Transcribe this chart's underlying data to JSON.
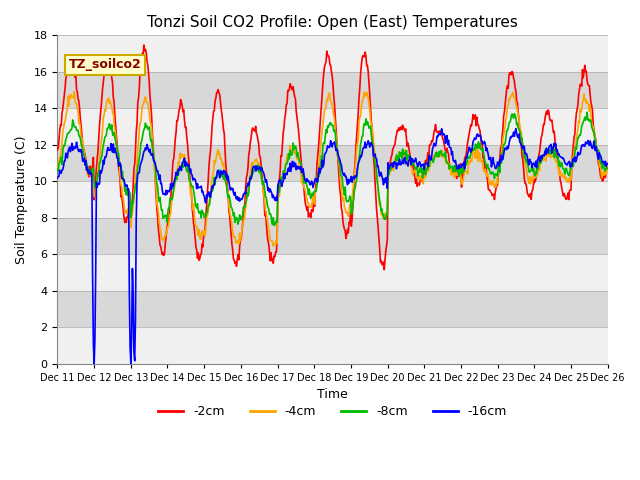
{
  "title": "Tonzi Soil CO2 Profile: Open (East) Temperatures",
  "xlabel": "Time",
  "ylabel": "Soil Temperature (C)",
  "ylim": [
    0,
    18
  ],
  "yticks": [
    0,
    2,
    4,
    6,
    8,
    10,
    12,
    14,
    16,
    18
  ],
  "xtick_labels": [
    "Dec 11",
    "Dec 12",
    "Dec 13",
    "Dec 14",
    "Dec 15",
    "Dec 16",
    "Dec 17",
    "Dec 18",
    "Dec 19",
    "Dec 20",
    "Dec 21",
    "Dec 22",
    "Dec 23",
    "Dec 24",
    "Dec 25",
    "Dec 26"
  ],
  "series_colors": [
    "#ff0000",
    "#ffa500",
    "#00bb00",
    "#0000ff"
  ],
  "series_labels": [
    "-2cm",
    "-4cm",
    "-8cm",
    "-16cm"
  ],
  "legend_label": "TZ_soilco2",
  "plot_bg_color": "#d8d8d8",
  "stripe_color": "#f0f0f0",
  "title_fontsize": 11,
  "label_fontsize": 9,
  "tick_fontsize": 8
}
